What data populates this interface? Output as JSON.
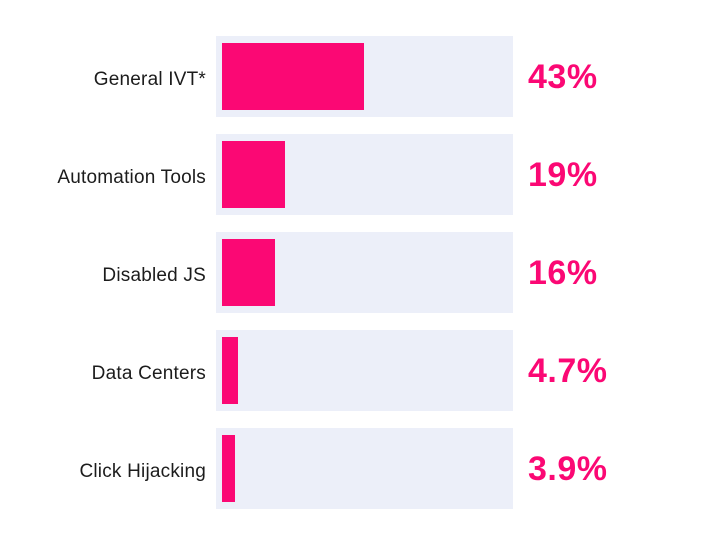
{
  "chart_data": {
    "type": "bar",
    "orientation": "horizontal",
    "title": "",
    "xlabel": "",
    "ylabel": "",
    "categories": [
      "General IVT*",
      "Automation Tools",
      "Disabled JS",
      "Data Centers",
      "Click Hijacking"
    ],
    "values": [
      43,
      19,
      16,
      4.7,
      3.9
    ],
    "value_labels": [
      "43%",
      "19%",
      "16%",
      "4.7%",
      "3.9%"
    ],
    "xlim": [
      0,
      90
    ],
    "grid": false,
    "legend": false,
    "colors": {
      "bar": "#FB0874",
      "track": "#ECEFF9",
      "value_label": "#FB0874",
      "category_label": "#1C1C1C",
      "background": "#FFFFFF"
    }
  }
}
